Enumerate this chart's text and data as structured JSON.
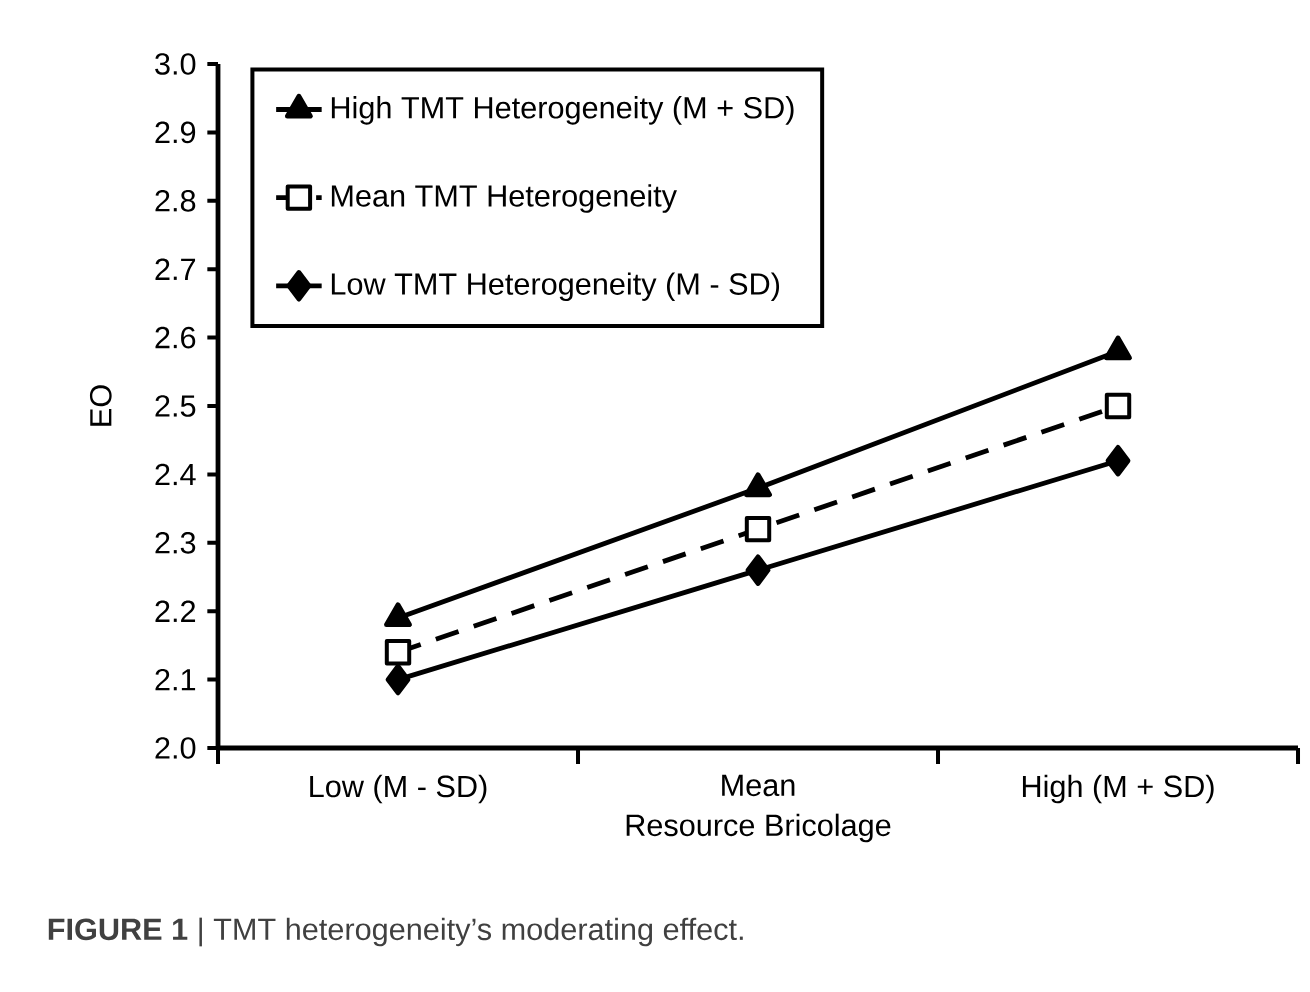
{
  "chart_data": {
    "type": "line",
    "xlabel": "Resource Bricolage",
    "ylabel": "EO",
    "categories": [
      "Low (M - SD)",
      "Mean",
      "High (M + SD)"
    ],
    "series": [
      {
        "name": "High TMT Heterogeneity (M + SD)",
        "color": "#000000",
        "values": [
          2.19,
          2.38,
          2.58
        ],
        "marker": "triangle",
        "line_style": "solid"
      },
      {
        "name": "Mean TMT Heterogeneity",
        "color": "#000000",
        "values": [
          2.14,
          2.32,
          2.5
        ],
        "marker": "square",
        "line_style": "dashed"
      },
      {
        "name": "Low TMT Heterogeneity (M - SD)",
        "color": "#000000",
        "values": [
          2.1,
          2.26,
          2.42
        ],
        "marker": "diamond",
        "line_style": "solid"
      }
    ],
    "ylim": [
      2.0,
      3.0
    ],
    "yticks": [
      {
        "value": 2.0,
        "label": "2.0"
      },
      2.1,
      2.2,
      2.3,
      2.4,
      2.5,
      2.6,
      2.7,
      2.8,
      2.9,
      {
        "value": 3.0,
        "label": "3.0"
      }
    ],
    "grid": false,
    "legend": "top left",
    "annotations": [
      "**FIGURE 1** | TMT heterogeneity’s moderating effect."
    ]
  }
}
